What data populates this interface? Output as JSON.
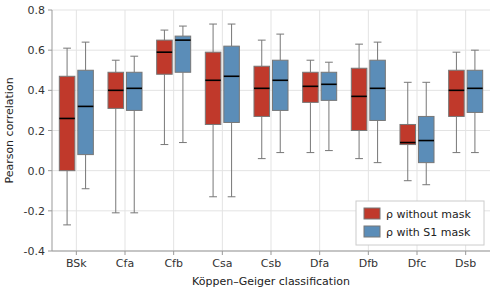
{
  "chart_data": {
    "type": "box",
    "xlabel": "Köppen–Geiger classification",
    "ylabel": "Pearson correlation",
    "categories": [
      "BSk",
      "Cfa",
      "Cfb",
      "Csa",
      "Csb",
      "Dfa",
      "Dfb",
      "Dfc",
      "Dsb"
    ],
    "series": [
      {
        "name": "ρ without mask",
        "color": "#c0392b",
        "whislo": [
          -0.27,
          -0.21,
          0.13,
          -0.13,
          0.06,
          0.09,
          0.06,
          -0.05,
          0.09
        ],
        "q1": [
          0.0,
          0.31,
          0.48,
          0.23,
          0.27,
          0.34,
          0.2,
          0.13,
          0.27
        ],
        "med": [
          0.26,
          0.4,
          0.59,
          0.45,
          0.41,
          0.42,
          0.37,
          0.14,
          0.4
        ],
        "q3": [
          0.47,
          0.49,
          0.65,
          0.59,
          0.52,
          0.49,
          0.51,
          0.23,
          0.5
        ],
        "whishi": [
          0.61,
          0.55,
          0.7,
          0.73,
          0.65,
          0.55,
          0.63,
          0.44,
          0.59
        ]
      },
      {
        "name": "ρ with S1 mask",
        "color": "#5b8db8",
        "whislo": [
          -0.09,
          -0.21,
          0.14,
          -0.13,
          0.09,
          0.1,
          0.04,
          -0.07,
          0.09
        ],
        "q1": [
          0.08,
          0.3,
          0.49,
          0.24,
          0.3,
          0.35,
          0.25,
          0.04,
          0.29
        ],
        "med": [
          0.32,
          0.41,
          0.65,
          0.47,
          0.45,
          0.43,
          0.41,
          0.15,
          0.41
        ],
        "q3": [
          0.5,
          0.49,
          0.67,
          0.62,
          0.55,
          0.49,
          0.55,
          0.27,
          0.5
        ],
        "whishi": [
          0.64,
          0.57,
          0.72,
          0.73,
          0.68,
          0.54,
          0.64,
          0.44,
          0.6
        ]
      }
    ],
    "ylim": [
      -0.4,
      0.8
    ],
    "yticks": [
      -0.4,
      -0.2,
      {
        "value": 0.0,
        "label": "0.0"
      },
      0.2,
      0.4,
      0.6,
      0.8
    ],
    "grid": true,
    "legend": "lower right"
  }
}
